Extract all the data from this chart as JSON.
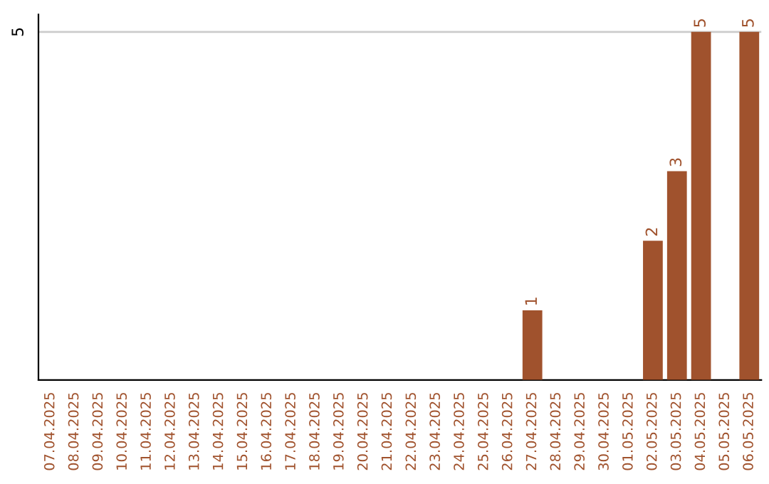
{
  "chart_data": {
    "type": "bar",
    "categories": [
      "07.04.2025",
      "08.04.2025",
      "09.04.2025",
      "10.04.2025",
      "11.04.2025",
      "12.04.2025",
      "13.04.2025",
      "14.04.2025",
      "15.04.2025",
      "16.04.2025",
      "17.04.2025",
      "18.04.2025",
      "19.04.2025",
      "20.04.2025",
      "21.04.2025",
      "22.04.2025",
      "23.04.2025",
      "24.04.2025",
      "25.04.2025",
      "26.04.2025",
      "27.04.2025",
      "28.04.2025",
      "29.04.2025",
      "30.04.2025",
      "01.05.2025",
      "02.05.2025",
      "03.05.2025",
      "04.05.2025",
      "05.05.2025",
      "06.05.2025"
    ],
    "values": [
      null,
      null,
      null,
      null,
      null,
      null,
      null,
      null,
      null,
      null,
      null,
      null,
      null,
      null,
      null,
      null,
      null,
      null,
      null,
      null,
      1,
      null,
      null,
      null,
      null,
      2,
      3,
      5,
      null,
      5
    ],
    "data_labels": true,
    "ref_lines": [
      {
        "axis": "y",
        "value": 5,
        "label": "5",
        "color": "#cccccc"
      }
    ],
    "color": "#a0522d",
    "grid": false
  }
}
